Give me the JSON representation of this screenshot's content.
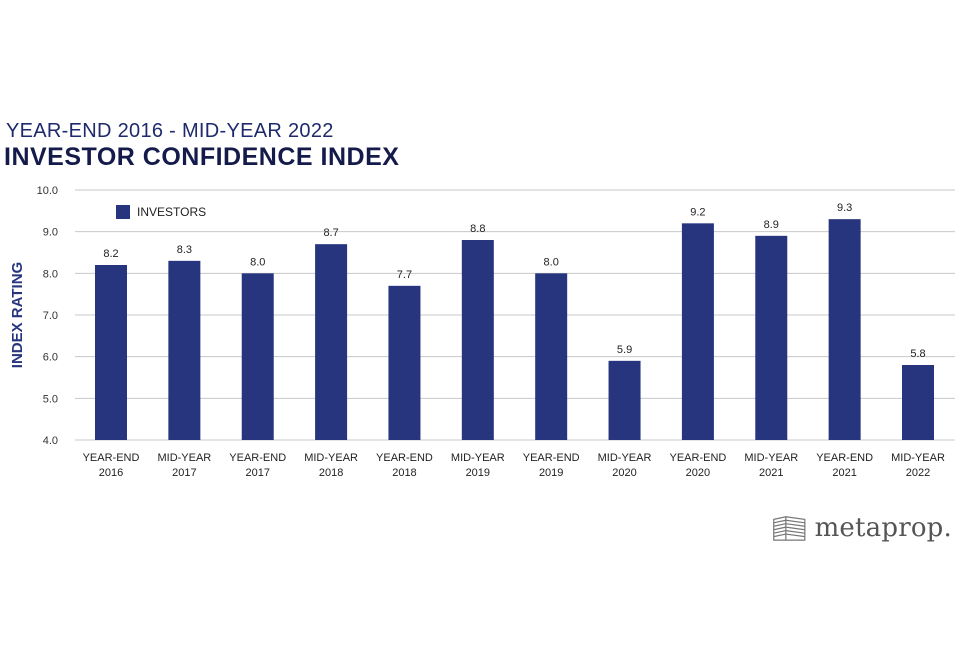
{
  "header": {
    "subtitle": "YEAR-END 2016 - MID-YEAR 2022",
    "title": "INVESTOR CONFIDENCE INDEX"
  },
  "brand": {
    "name": "metaprop."
  },
  "colors": {
    "bar": "#27357f",
    "title": "#141a4a",
    "subtitle": "#1e2a6b",
    "grid": "#c8c8c8",
    "axis_label": "#27357f"
  },
  "chart_data": {
    "type": "bar",
    "title": "INVESTOR CONFIDENCE INDEX",
    "subtitle": "YEAR-END 2016 - MID-YEAR 2022",
    "xlabel": "",
    "ylabel": "INDEX RATING",
    "ylim": [
      4.0,
      10.0
    ],
    "yticks": [
      "4.0",
      "5.0",
      "6.0",
      "7.0",
      "8.0",
      "9.0",
      "10.0"
    ],
    "grid": true,
    "legend_position": "top-left",
    "categories": [
      [
        "YEAR-END",
        "2016"
      ],
      [
        "MID-YEAR",
        "2017"
      ],
      [
        "YEAR-END",
        "2017"
      ],
      [
        "MID-YEAR",
        "2018"
      ],
      [
        "YEAR-END",
        "2018"
      ],
      [
        "MID-YEAR",
        "2019"
      ],
      [
        "YEAR-END",
        "2019"
      ],
      [
        "MID-YEAR",
        "2020"
      ],
      [
        "YEAR-END",
        "2020"
      ],
      [
        "MID-YEAR",
        "2021"
      ],
      [
        "YEAR-END",
        "2021"
      ],
      [
        "MID-YEAR",
        "2022"
      ]
    ],
    "series": [
      {
        "name": "INVESTORS",
        "values": [
          8.2,
          8.3,
          8.0,
          8.7,
          7.7,
          8.8,
          8.0,
          5.9,
          9.2,
          8.9,
          9.3,
          5.8
        ],
        "labels": [
          "8.2",
          "8.3",
          "8.0",
          "8.7",
          "7.7",
          "8.8",
          "8.0",
          "5.9",
          "9.2",
          "8.9",
          "9.3",
          "5.8"
        ]
      }
    ]
  }
}
